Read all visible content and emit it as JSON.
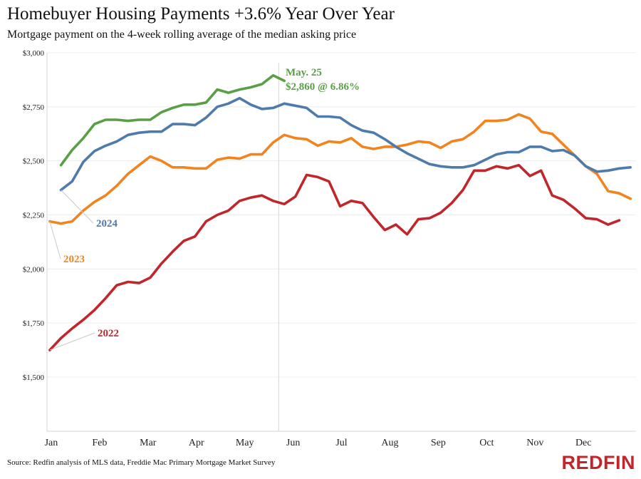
{
  "chart_data": {
    "type": "line",
    "title": "Homebuyer Housing Payments +3.6% Year Over Year",
    "subtitle": "Mortgage payment on the 4-week rolling average of the median asking price",
    "source": "Source: Redfin analysis of MLS data, Freddie Mac Primary Mortgage Market Survey",
    "brand": "REDFIN",
    "x_unit": "week of year",
    "x_categories": [
      "Jan",
      "Feb",
      "Mar",
      "Apr",
      "May",
      "Jun",
      "Jul",
      "Aug",
      "Sep",
      "Oct",
      "Nov",
      "Dec"
    ],
    "y_ticks": [
      "$1,500",
      "$1,750",
      "$2,000",
      "$2,250",
      "$2,500",
      "$2,750",
      "$3,000"
    ],
    "y_tick_values": [
      1500,
      1750,
      2000,
      2250,
      2500,
      2750,
      3000
    ],
    "ylim": [
      1500,
      3000
    ],
    "xlim": [
      1,
      52
    ],
    "grid": true,
    "reference_line_week": 21.5,
    "annotation": {
      "line1": "May. 25",
      "line2": "$2,860 @ 6.86%",
      "color": "#5a9e46"
    },
    "series": [
      {
        "name": "2022",
        "color": "#c0262b",
        "values": [
          [
            1,
            1625
          ],
          [
            2,
            1680
          ],
          [
            3,
            1725
          ],
          [
            4,
            1765
          ],
          [
            5,
            1810
          ],
          [
            6,
            1865
          ],
          [
            7,
            1925
          ],
          [
            8,
            1940
          ],
          [
            9,
            1935
          ],
          [
            10,
            1960
          ],
          [
            11,
            2025
          ],
          [
            12,
            2080
          ],
          [
            13,
            2130
          ],
          [
            14,
            2150
          ],
          [
            15,
            2220
          ],
          [
            16,
            2250
          ],
          [
            17,
            2270
          ],
          [
            18,
            2315
          ],
          [
            19,
            2330
          ],
          [
            20,
            2340
          ],
          [
            21,
            2315
          ],
          [
            22,
            2300
          ],
          [
            23,
            2335
          ],
          [
            24,
            2435
          ],
          [
            25,
            2425
          ],
          [
            26,
            2405
          ],
          [
            27,
            2290
          ],
          [
            28,
            2315
          ],
          [
            29,
            2305
          ],
          [
            30,
            2240
          ],
          [
            31,
            2180
          ],
          [
            32,
            2205
          ],
          [
            33,
            2160
          ],
          [
            34,
            2230
          ],
          [
            35,
            2235
          ],
          [
            36,
            2260
          ],
          [
            37,
            2305
          ],
          [
            38,
            2365
          ],
          [
            39,
            2455
          ],
          [
            40,
            2455
          ],
          [
            41,
            2475
          ],
          [
            42,
            2465
          ],
          [
            43,
            2480
          ],
          [
            44,
            2430
          ],
          [
            45,
            2455
          ],
          [
            46,
            2340
          ],
          [
            47,
            2320
          ],
          [
            48,
            2280
          ],
          [
            49,
            2235
          ],
          [
            50,
            2230
          ],
          [
            51,
            2205
          ],
          [
            52,
            2225
          ]
        ]
      },
      {
        "name": "2023",
        "color": "#f2841f",
        "values": [
          [
            1,
            2220
          ],
          [
            2,
            2210
          ],
          [
            3,
            2220
          ],
          [
            4,
            2270
          ],
          [
            5,
            2310
          ],
          [
            6,
            2340
          ],
          [
            7,
            2385
          ],
          [
            8,
            2440
          ],
          [
            9,
            2480
          ],
          [
            10,
            2520
          ],
          [
            11,
            2500
          ],
          [
            12,
            2470
          ],
          [
            13,
            2470
          ],
          [
            14,
            2465
          ],
          [
            15,
            2465
          ],
          [
            16,
            2505
          ],
          [
            17,
            2515
          ],
          [
            18,
            2510
          ],
          [
            19,
            2530
          ],
          [
            20,
            2530
          ],
          [
            21,
            2585
          ],
          [
            22,
            2620
          ],
          [
            23,
            2605
          ],
          [
            24,
            2600
          ],
          [
            25,
            2570
          ],
          [
            26,
            2590
          ],
          [
            27,
            2585
          ],
          [
            28,
            2605
          ],
          [
            29,
            2565
          ],
          [
            30,
            2555
          ],
          [
            31,
            2565
          ],
          [
            32,
            2565
          ],
          [
            33,
            2575
          ],
          [
            34,
            2590
          ],
          [
            35,
            2585
          ],
          [
            36,
            2560
          ],
          [
            37,
            2590
          ],
          [
            38,
            2600
          ],
          [
            39,
            2635
          ],
          [
            40,
            2685
          ],
          [
            41,
            2685
          ],
          [
            42,
            2690
          ],
          [
            43,
            2715
          ],
          [
            44,
            2695
          ],
          [
            45,
            2635
          ],
          [
            46,
            2625
          ],
          [
            47,
            2575
          ],
          [
            48,
            2525
          ],
          [
            49,
            2475
          ],
          [
            50,
            2440
          ],
          [
            51,
            2360
          ],
          [
            52,
            2350
          ],
          [
            53,
            2325
          ]
        ]
      },
      {
        "name": "2024",
        "color": "#4f7bab",
        "values": [
          [
            2,
            2365
          ],
          [
            3,
            2405
          ],
          [
            4,
            2495
          ],
          [
            5,
            2545
          ],
          [
            6,
            2570
          ],
          [
            7,
            2590
          ],
          [
            8,
            2620
          ],
          [
            9,
            2630
          ],
          [
            10,
            2635
          ],
          [
            11,
            2635
          ],
          [
            12,
            2670
          ],
          [
            13,
            2670
          ],
          [
            14,
            2665
          ],
          [
            15,
            2700
          ],
          [
            16,
            2750
          ],
          [
            17,
            2765
          ],
          [
            18,
            2790
          ],
          [
            19,
            2760
          ],
          [
            20,
            2740
          ],
          [
            21,
            2745
          ],
          [
            22,
            2765
          ],
          [
            23,
            2755
          ],
          [
            24,
            2745
          ],
          [
            25,
            2705
          ],
          [
            26,
            2705
          ],
          [
            27,
            2700
          ],
          [
            28,
            2665
          ],
          [
            29,
            2640
          ],
          [
            30,
            2630
          ],
          [
            31,
            2600
          ],
          [
            32,
            2565
          ],
          [
            33,
            2535
          ],
          [
            34,
            2510
          ],
          [
            35,
            2485
          ],
          [
            36,
            2475
          ],
          [
            37,
            2470
          ],
          [
            38,
            2470
          ],
          [
            39,
            2480
          ],
          [
            40,
            2505
          ],
          [
            41,
            2530
          ],
          [
            42,
            2540
          ],
          [
            43,
            2540
          ],
          [
            44,
            2565
          ],
          [
            45,
            2565
          ],
          [
            46,
            2545
          ],
          [
            47,
            2550
          ],
          [
            48,
            2525
          ],
          [
            49,
            2475
          ],
          [
            50,
            2450
          ],
          [
            51,
            2455
          ],
          [
            52,
            2465
          ],
          [
            53,
            2470
          ]
        ]
      },
      {
        "name": "",
        "color": "#5a9e46",
        "values": [
          [
            2,
            2480
          ],
          [
            3,
            2550
          ],
          [
            4,
            2605
          ],
          [
            5,
            2670
          ],
          [
            6,
            2690
          ],
          [
            7,
            2690
          ],
          [
            8,
            2685
          ],
          [
            9,
            2690
          ],
          [
            10,
            2690
          ],
          [
            11,
            2725
          ],
          [
            12,
            2745
          ],
          [
            13,
            2760
          ],
          [
            14,
            2760
          ],
          [
            15,
            2770
          ],
          [
            16,
            2830
          ],
          [
            17,
            2815
          ],
          [
            18,
            2830
          ],
          [
            19,
            2840
          ],
          [
            20,
            2855
          ],
          [
            21,
            2895
          ],
          [
            22,
            2870
          ]
        ]
      }
    ],
    "labels": {
      "2022": "2022",
      "2023": "2023",
      "2024": "2024"
    }
  }
}
